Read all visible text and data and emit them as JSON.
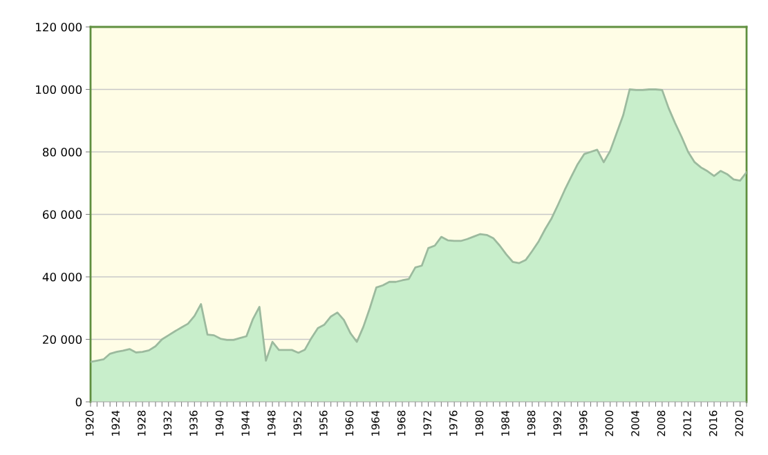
{
  "chart_data": {
    "type": "area",
    "categories": [
      "1920",
      null,
      null,
      null,
      "1924",
      null,
      null,
      null,
      "1928",
      null,
      null,
      null,
      "1932",
      null,
      null,
      null,
      "1936",
      null,
      null,
      null,
      "1940",
      null,
      null,
      null,
      "1944",
      null,
      null,
      null,
      "1948",
      null,
      null,
      null,
      "1952",
      null,
      null,
      null,
      "1956",
      null,
      null,
      null,
      "1960",
      null,
      null,
      null,
      "1964",
      null,
      null,
      null,
      "1968",
      null,
      null,
      null,
      "1972",
      null,
      null,
      null,
      "1976",
      null,
      null,
      null,
      "1980",
      null,
      null,
      null,
      "1984",
      null,
      null,
      null,
      "1988",
      null,
      null,
      null,
      "1992",
      null,
      null,
      null,
      "1996",
      null,
      null,
      null,
      "2000",
      null,
      null,
      null,
      "2004",
      null,
      null,
      null,
      "2008",
      null,
      null,
      null,
      "2012",
      null,
      null,
      null,
      "2016",
      null,
      null,
      null,
      "2020",
      null
    ],
    "series": [
      {
        "color": "#c8eecb",
        "values": [
          12800,
          13200,
          13600,
          15400,
          16000,
          16400,
          16900,
          15800,
          16000,
          16500,
          17800,
          20000,
          21300,
          22600,
          23800,
          25000,
          27500,
          31300,
          21500,
          21300,
          20200,
          19800,
          19800,
          20400,
          21000,
          26500,
          30400,
          13200,
          19200,
          16600,
          16600,
          16600,
          15700,
          16700,
          20400,
          23600,
          24700,
          27300,
          28600,
          26200,
          22000,
          19200,
          24000,
          30000,
          36600,
          37300,
          38400,
          38400,
          38900,
          39300,
          43000,
          43600,
          49200,
          50000,
          52800,
          51700,
          51500,
          51500,
          52100,
          52900,
          53700,
          53400,
          52400,
          50000,
          47200,
          44800,
          44400,
          45400,
          48300,
          51400,
          55300,
          58800,
          63200,
          67800,
          72000,
          76100,
          79300,
          80000,
          80700,
          76700,
          80300,
          86000,
          91700,
          100000,
          99800,
          99800,
          100000,
          100000,
          99800,
          94000,
          89200,
          84800,
          80000,
          76700,
          75000,
          73800,
          72300,
          73900,
          72900,
          71200,
          70800,
          73500
        ]
      }
    ],
    "ylim": [
      0,
      120000
    ],
    "yticks": [
      {
        "value": 0,
        "label": "0"
      },
      {
        "value": 20000,
        "label": "20 000"
      },
      {
        "value": 40000,
        "label": "40 000"
      },
      {
        "value": 60000,
        "label": "60 000"
      },
      {
        "value": 80000,
        "label": "80 000"
      },
      {
        "value": 100000,
        "label": "100 000"
      },
      {
        "value": 120000,
        "label": "120 000"
      }
    ],
    "grid": "y"
  }
}
